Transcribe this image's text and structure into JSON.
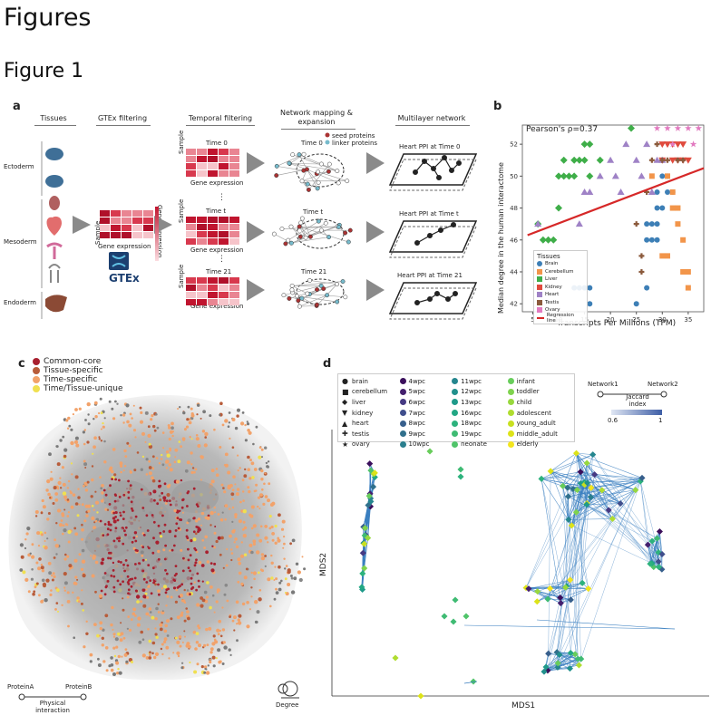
{
  "heading": "Figures",
  "subheading": "Figure 1",
  "panel_a": {
    "label": "a",
    "col_headers": [
      "Tissues",
      "GTEx filtering",
      "Temporal filtering",
      "Network mapping & expansion",
      "Multilayer network"
    ],
    "germ_layers": [
      "Ectoderm",
      "Mesoderm",
      "Endoderm"
    ],
    "time_labels": [
      "Time 0",
      "Time t",
      "Time 21"
    ],
    "sample_label": "Sample",
    "gene_expr_label": "Gene expression",
    "gene_expr_vertical": "Gene expression",
    "gtex_logo": "GTEx",
    "seed_label": "seed proteins",
    "linker_label": "linker proteins",
    "net_time_labels": [
      "Time 0",
      "Time t",
      "Time 21"
    ],
    "layer_titles": [
      "Heart PPI at Time 0",
      "Heart PPI at Time t",
      "Heart PPI at Time 21"
    ]
  },
  "panel_b": {
    "label": "b",
    "annotation": "Pearson's ρ=0.37",
    "legend_title": "Tissues",
    "legend": [
      "Brain",
      "Cerebellum",
      "Liver",
      "Kidney",
      "Heart",
      "Testis",
      "Ovary",
      "Regression line"
    ],
    "xlabel": "Transcripts Per Millions (TPM)",
    "ylabel": "Median degree in the human interactome",
    "xticks": [
      "5",
      "10",
      "15",
      "20",
      "25",
      "30",
      "35"
    ],
    "yticks": [
      "42",
      "44",
      "46",
      "48",
      "50",
      "52"
    ]
  },
  "chart_data": {
    "type": "scatter",
    "xlim": [
      3,
      38
    ],
    "ylim": [
      41.5,
      53.2
    ],
    "series": [
      {
        "name": "Brain",
        "color": "#3d7fb6",
        "marker": "circle",
        "points": [
          [
            13,
            43
          ],
          [
            14,
            43
          ],
          [
            15,
            43
          ],
          [
            16,
            43
          ],
          [
            16,
            42
          ],
          [
            25,
            42
          ],
          [
            27,
            46
          ],
          [
            28,
            46
          ],
          [
            29,
            46
          ],
          [
            27,
            47
          ],
          [
            28,
            47
          ],
          [
            29,
            47
          ],
          [
            29,
            48
          ],
          [
            30,
            48
          ],
          [
            29,
            49
          ],
          [
            31,
            49
          ],
          [
            32,
            49
          ],
          [
            30,
            50
          ],
          [
            31,
            50
          ],
          [
            30,
            51
          ],
          [
            27,
            43
          ]
        ]
      },
      {
        "name": "Cerebellum",
        "color": "#f2954a",
        "marker": "square",
        "points": [
          [
            28,
            50
          ],
          [
            31,
            50
          ],
          [
            32,
            48
          ],
          [
            33,
            48
          ],
          [
            34,
            46
          ],
          [
            34,
            44
          ],
          [
            35,
            43
          ],
          [
            35,
            44
          ],
          [
            30,
            45
          ],
          [
            31,
            45
          ],
          [
            33,
            47
          ],
          [
            32,
            49
          ]
        ]
      },
      {
        "name": "Liver",
        "color": "#3fae49",
        "marker": "diamond",
        "points": [
          [
            6,
            47
          ],
          [
            7,
            46
          ],
          [
            8,
            46
          ],
          [
            9,
            46
          ],
          [
            10,
            48
          ],
          [
            10,
            50
          ],
          [
            11,
            50
          ],
          [
            12,
            50
          ],
          [
            11,
            51
          ],
          [
            13,
            51
          ],
          [
            14,
            51
          ],
          [
            15,
            52
          ],
          [
            16,
            52
          ],
          [
            15,
            51
          ],
          [
            16,
            50
          ],
          [
            18,
            51
          ],
          [
            24,
            53
          ],
          [
            13,
            50
          ]
        ]
      },
      {
        "name": "Kidney",
        "color": "#e04a3d",
        "marker": "triangle-down",
        "points": [
          [
            30,
            52
          ],
          [
            31,
            52
          ],
          [
            32,
            52
          ],
          [
            33,
            52
          ],
          [
            34,
            52
          ],
          [
            30,
            51
          ],
          [
            32,
            51
          ],
          [
            34,
            51
          ],
          [
            35,
            51
          ],
          [
            33,
            51
          ]
        ]
      },
      {
        "name": "Heart",
        "color": "#9f82c6",
        "marker": "triangle",
        "points": [
          [
            6,
            47
          ],
          [
            14,
            47
          ],
          [
            15,
            49
          ],
          [
            16,
            49
          ],
          [
            18,
            50
          ],
          [
            20,
            51
          ],
          [
            21,
            50
          ],
          [
            23,
            52
          ],
          [
            25,
            51
          ],
          [
            26,
            50
          ],
          [
            27,
            52
          ],
          [
            28,
            49
          ],
          [
            29,
            51
          ],
          [
            30,
            51
          ],
          [
            22,
            49
          ]
        ]
      },
      {
        "name": "Testis",
        "color": "#8b5a3c",
        "marker": "plus",
        "points": [
          [
            25,
            47
          ],
          [
            26,
            45
          ],
          [
            27,
            49
          ],
          [
            28,
            51
          ],
          [
            29,
            52
          ],
          [
            30,
            51
          ],
          [
            31,
            51
          ],
          [
            33,
            51
          ],
          [
            34,
            51
          ],
          [
            26,
            44
          ]
        ]
      },
      {
        "name": "Ovary",
        "color": "#e27ac0",
        "marker": "star",
        "points": [
          [
            31,
            53
          ],
          [
            33,
            53
          ],
          [
            35,
            53
          ],
          [
            37,
            53
          ],
          [
            32,
            52
          ],
          [
            36,
            52
          ],
          [
            29,
            53
          ]
        ]
      }
    ],
    "regression": {
      "from": [
        4,
        46.3
      ],
      "to": [
        38,
        50.5
      ],
      "color": "#d62828"
    }
  },
  "panel_c": {
    "label": "c",
    "legend": [
      {
        "label": "Common-core",
        "color": "#a8202f"
      },
      {
        "label": "Tissue-specific",
        "color": "#b85c3a"
      },
      {
        "label": "Time-specific",
        "color": "#f2a26a"
      },
      {
        "label": "Time/Tissue-unique",
        "color": "#f0e050"
      }
    ],
    "edge_a": "ProteinA",
    "edge_b": "ProteinB",
    "edge_label": "Physical interaction",
    "degree_label": "Degree"
  },
  "panel_d": {
    "label": "d",
    "legend_shapes": [
      "brain",
      "cerebellum",
      "liver",
      "kidney",
      "heart",
      "testis",
      "ovary"
    ],
    "legend_times": [
      {
        "label": "4wpc",
        "color": "#3b0f5c"
      },
      {
        "label": "5wpc",
        "color": "#44206e"
      },
      {
        "label": "6wpc",
        "color": "#463a83"
      },
      {
        "label": "7wpc",
        "color": "#3f4e8c"
      },
      {
        "label": "8wpc",
        "color": "#375f8c"
      },
      {
        "label": "9wpc",
        "color": "#30708c"
      },
      {
        "label": "10wpc",
        "color": "#2a7f8e"
      },
      {
        "label": "11wpc",
        "color": "#25868e"
      },
      {
        "label": "12wpc",
        "color": "#21908c"
      },
      {
        "label": "13wpc",
        "color": "#1f9a8a"
      },
      {
        "label": "16wpc",
        "color": "#22a784"
      },
      {
        "label": "18wpc",
        "color": "#2db27d"
      },
      {
        "label": "19wpc",
        "color": "#3fbb73"
      },
      {
        "label": "neonate",
        "color": "#50c46a"
      },
      {
        "label": "infant",
        "color": "#68cd5b"
      },
      {
        "label": "toddler",
        "color": "#7fd34e"
      },
      {
        "label": "child",
        "color": "#98d83e"
      },
      {
        "label": "adolescent",
        "color": "#b0dd2f"
      },
      {
        "label": "young_adult",
        "color": "#c8e020"
      },
      {
        "label": "middle_adult",
        "color": "#dde318"
      },
      {
        "label": "elderly",
        "color": "#f3e51e"
      }
    ],
    "net1": "Network1",
    "net2": "Network2",
    "jaccard_title": "Jaccard index",
    "jaccard_min": "0.6",
    "jaccard_max": "1",
    "xlabel": "MDS1",
    "ylabel": "MDS2"
  }
}
